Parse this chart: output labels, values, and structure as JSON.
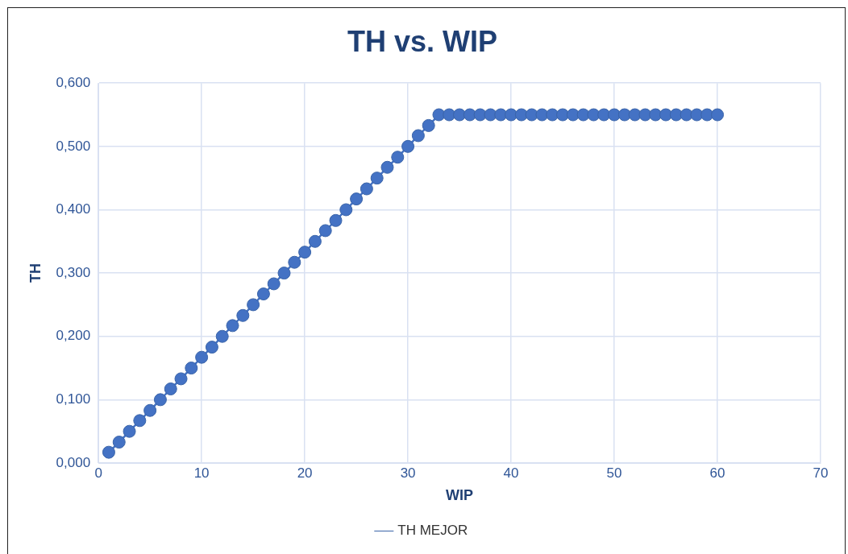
{
  "chart_data": {
    "type": "line",
    "title": "TH vs. WIP",
    "xlabel": "WIP",
    "ylabel": "TH",
    "x": [
      1,
      2,
      3,
      4,
      5,
      6,
      7,
      8,
      9,
      10,
      11,
      12,
      13,
      14,
      15,
      16,
      17,
      18,
      19,
      20,
      21,
      22,
      23,
      24,
      25,
      26,
      27,
      28,
      29,
      30,
      31,
      32,
      33,
      34,
      35,
      36,
      37,
      38,
      39,
      40,
      41,
      42,
      43,
      44,
      45,
      46,
      47,
      48,
      49,
      50,
      51,
      52,
      53,
      54,
      55,
      56,
      57,
      58,
      59,
      60
    ],
    "series": [
      {
        "name": "TH MEJOR",
        "color": "#4472c4",
        "values": [
          0.017,
          0.033,
          0.05,
          0.067,
          0.083,
          0.1,
          0.117,
          0.133,
          0.15,
          0.167,
          0.183,
          0.2,
          0.217,
          0.233,
          0.25,
          0.267,
          0.283,
          0.3,
          0.317,
          0.333,
          0.35,
          0.367,
          0.383,
          0.4,
          0.417,
          0.433,
          0.45,
          0.467,
          0.483,
          0.5,
          0.517,
          0.533,
          0.55,
          0.55,
          0.55,
          0.55,
          0.55,
          0.55,
          0.55,
          0.55,
          0.55,
          0.55,
          0.55,
          0.55,
          0.55,
          0.55,
          0.55,
          0.55,
          0.55,
          0.55,
          0.55,
          0.55,
          0.55,
          0.55,
          0.55,
          0.55,
          0.55,
          0.55,
          0.55,
          0.55
        ]
      }
    ],
    "xlim": [
      0,
      70
    ],
    "xticks": [
      0,
      10,
      20,
      30,
      40,
      50,
      60,
      70
    ],
    "ylim": [
      0,
      0.6
    ],
    "yticks": [
      {
        "value": 0,
        "label": "0,000"
      },
      {
        "value": 0.1,
        "label": "0,100"
      },
      {
        "value": 0.2,
        "label": "0,200"
      },
      {
        "value": 0.3,
        "label": "0,300"
      },
      {
        "value": 0.4,
        "label": "0,400"
      },
      {
        "value": 0.5,
        "label": "0,500"
      },
      {
        "value": 0.6,
        "label": "0,600"
      }
    ],
    "grid": true,
    "legend": "bottom",
    "marker": "circle",
    "line_style": "solid"
  }
}
